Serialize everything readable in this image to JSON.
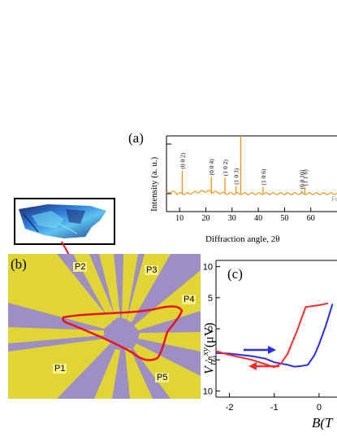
{
  "panel_a": {
    "label": "(a)",
    "ylabel": "Intensity (a. u.)",
    "xlabel": "Diffraction angle, 2θ",
    "x_ticks": [
      "10",
      "20",
      "30",
      "40",
      "50",
      "60"
    ],
    "peaks": [
      {
        "x": 11.0,
        "label": "(0 0 2)",
        "height": 0.4
      },
      {
        "x": 22.1,
        "label": "(0 0 4)",
        "height": 0.29
      },
      {
        "x": 27.3,
        "label": "(1 0 2)",
        "height": 0.28
      },
      {
        "x": 31.5,
        "label": "(1 0 3)",
        "height": 0.13
      },
      {
        "x": 33.3,
        "label": "(0 0 6)",
        "height": 1.0
      },
      {
        "x": 41.8,
        "label": "(1 0 6)",
        "height": 0.12
      },
      {
        "x": 56.6,
        "label": "(0 0 10)",
        "height": 0.05
      },
      {
        "x": 57.8,
        "label": "(1 1 6)",
        "height": 0.11
      }
    ],
    "partial_text": "Fe"
  },
  "panel_b": {
    "label": "(b)",
    "probes": [
      "P1",
      "P2",
      "P3",
      "P4",
      "P5"
    ],
    "colors": {
      "background": "#9d8ec4",
      "electrode": "#e1d435",
      "outline": "#e8141c"
    }
  },
  "panel_c": {
    "label": "(c)",
    "ylabel_main": "V",
    "ylabel_sup": "xy",
    "ylabel_sub": "1ω",
    "ylabel_unit": "(μV)",
    "xlabel": "B(T",
    "y_ticks": [
      "10",
      "5",
      "0",
      "-5",
      "-10"
    ],
    "x_ticks": [
      "-2",
      "-1",
      "0"
    ]
  },
  "chart_data": [
    {
      "type": "line",
      "title": "",
      "xlabel": "Diffraction angle, 2θ",
      "ylabel": "Intensity (a. u.)",
      "xlim": [
        5,
        70
      ],
      "x_ticks": [
        10,
        20,
        30,
        40,
        50,
        60
      ],
      "series": [
        {
          "name": "",
          "color": "#f0941c"
        }
      ],
      "peaks_2theta": [
        11.0,
        22.1,
        27.3,
        31.5,
        33.3,
        41.8,
        56.6,
        57.8
      ]
    },
    {
      "type": "line",
      "title": "",
      "xlabel": "B(T",
      "ylabel": "V_1ω^xy (μV)",
      "xlim": [
        -2.3,
        0.4
      ],
      "ylim": [
        -11,
        11
      ],
      "x_ticks": [
        -2,
        -1,
        0
      ],
      "y_ticks": [
        10,
        5,
        0,
        -5,
        -10
      ],
      "series": [
        {
          "name": "",
          "color": "#2a2aff",
          "x": [
            -2.3,
            -2.0,
            -1.5,
            -1.2,
            -1.0,
            -0.7,
            -0.55,
            -0.4,
            -0.25,
            -0.1,
            0.0,
            0.15,
            0.3
          ],
          "y": [
            -3.9,
            -4.0,
            -4.4,
            -4.8,
            -5.4,
            -5.8,
            -6.1,
            -6.0,
            -5.8,
            -4.2,
            -2.5,
            0.5,
            4.0
          ]
        },
        {
          "name": "",
          "color": "#ff2a2a",
          "x": [
            -2.3,
            -2.0,
            -1.5,
            -1.2,
            -1.0,
            -0.85,
            -0.7,
            -0.5,
            -0.3,
            -0.1,
            0.0,
            0.2
          ],
          "y": [
            -3.6,
            -4.2,
            -5.0,
            -5.7,
            -6.2,
            -5.6,
            -4.0,
            -0.5,
            3.5,
            3.7,
            3.8,
            4.1
          ]
        }
      ]
    }
  ]
}
